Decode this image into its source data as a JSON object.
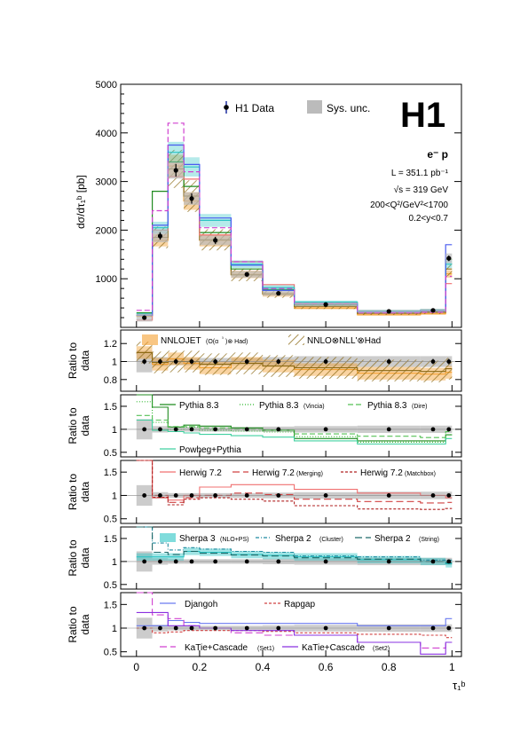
{
  "chart_data": {
    "type": "step-histogram",
    "experiment_logo": "H1",
    "xlabel": "τ₁ᵇ",
    "main_panel": {
      "ylabel": "dσ/dτ₁ᵇ [pb]",
      "ylim": [
        0,
        5000
      ],
      "yticks": [
        "1000",
        "2000",
        "3000",
        "4000",
        "5000"
      ],
      "legend": {
        "data": "H1 Data",
        "sys": "Sys. unc."
      },
      "annotations": [
        "e⁻ p",
        "L = 351.1 pb⁻¹",
        "√s = 319 GeV",
        "200<Q²/GeV²<1700",
        "0.2<y<0.7"
      ],
      "bin_edges": [
        0,
        0.05,
        0.1,
        0.15,
        0.2,
        0.3,
        0.4,
        0.5,
        0.7,
        0.9,
        0.98,
        1.0
      ],
      "data": [
        200,
        1880,
        3230,
        2650,
        1790,
        1090,
        700,
        470,
        330,
        350,
        1420
      ],
      "sys_unc": [
        80,
        130,
        170,
        130,
        100,
        70,
        50,
        40,
        30,
        30,
        100
      ],
      "models": [
        {
          "name": "NNLOJET",
          "color": "#f5a030",
          "values": [
            230,
            1790,
            3320,
            2600,
            1790,
            1090,
            680,
            400,
            260,
            280,
            1100
          ]
        },
        {
          "name": "NNLO⊗NLL'⊗Had",
          "color": "#8b6914",
          "values": [
            250,
            1850,
            3260,
            2700,
            1800,
            1080,
            690,
            430,
            290,
            310,
            1200
          ]
        },
        {
          "name": "Pythia 8.3",
          "color": "#1f8a1f",
          "values": [
            300,
            2800,
            3400,
            2900,
            1950,
            1200,
            780,
            460,
            320,
            330,
            1400
          ]
        },
        {
          "name": "Herwig 7.2",
          "color": "#f07070",
          "values": [
            150,
            2000,
            3100,
            3050,
            1900,
            1350,
            880,
            510,
            330,
            340,
            900
          ]
        },
        {
          "name": "Sherpa 3",
          "color": "#2cc4c4",
          "values": [
            280,
            2050,
            3600,
            3300,
            2200,
            1300,
            820,
            520,
            340,
            360,
            1300
          ]
        },
        {
          "name": "Djangoh",
          "color": "#4a5cf0",
          "values": [
            250,
            2100,
            3750,
            3350,
            2250,
            1280,
            760,
            480,
            320,
            340,
            1700
          ]
        },
        {
          "name": "KaTie+Cascade (Set1)",
          "color": "#d040d0",
          "values": [
            350,
            2400,
            4200,
            3200,
            2050,
            1350,
            800,
            490,
            300,
            310,
            1050
          ]
        }
      ]
    },
    "ratio_panels": [
      {
        "ylabel": "Ratio to data",
        "yticks": [
          "0.8",
          "1",
          "1.2"
        ],
        "ylim": [
          0.67,
          1.35
        ],
        "legend": [
          "NNLOJET",
          "(O(α",
          "³",
          ")⊗ Had)",
          "NNLO⊗NLL'⊗Had"
        ],
        "data_ratio_sys": [
          0.12,
          0.05,
          0.04,
          0.04,
          0.04,
          0.04,
          0.05,
          0.06,
          0.06,
          0.06,
          0.06
        ],
        "lines": [
          {
            "color": "#f5a030",
            "band": 0.07,
            "values": [
              1.1,
              0.97,
              1.03,
              0.98,
              0.93,
              0.98,
              0.95,
              0.91,
              0.87,
              0.86,
              0.88
            ]
          },
          {
            "color": "#8b6914",
            "band": 0.12,
            "values": [
              1.1,
              0.99,
              1.0,
              1.0,
              0.97,
              0.98,
              0.95,
              0.93,
              0.9,
              0.89,
              0.92
            ]
          }
        ]
      },
      {
        "ylabel": "Ratio to data",
        "yticks": [
          "0.5",
          "1",
          "1.5"
        ],
        "ylim": [
          0.4,
          1.75
        ],
        "legend": [
          "Pythia 8.3",
          "Pythia 8.3",
          "(Vincia)",
          "Pythia 8.3",
          "(Dire)",
          "Powheg+Pythia"
        ],
        "data_ratio_sys": [
          0.22,
          0.07,
          0.05,
          0.05,
          0.05,
          0.05,
          0.06,
          0.07,
          0.08,
          0.08,
          0.08
        ],
        "lines": [
          {
            "color": "#1f8a1f",
            "dash": "",
            "values": [
              1.75,
              1.48,
              1.05,
              1.09,
              1.07,
              1.03,
              0.98,
              0.8,
              0.75,
              0.75,
              0.88
            ]
          },
          {
            "color": "#2db82d",
            "dash": "1,2",
            "values": [
              1.6,
              1.15,
              1.0,
              1.05,
              0.98,
              0.96,
              0.94,
              0.84,
              0.72,
              0.72,
              0.88
            ]
          },
          {
            "color": "#55c055",
            "dash": "6,3",
            "values": [
              1.3,
              1.2,
              1.06,
              1.06,
              1.03,
              1.0,
              0.98,
              0.9,
              0.85,
              0.82,
              0.95
            ]
          },
          {
            "color": "#40d0a0",
            "dash": "",
            "values": [
              1.2,
              0.98,
              0.95,
              0.92,
              0.89,
              0.86,
              0.83,
              0.75,
              0.68,
              0.68,
              0.8
            ]
          }
        ]
      },
      {
        "ylabel": "Ratio to data",
        "yticks": [
          "0.5",
          "1",
          "1.5"
        ],
        "ylim": [
          0.4,
          1.75
        ],
        "legend": [
          "Herwig 7.2",
          "Herwig 7.2",
          "(Merging)",
          "Herwig 7.2",
          "(Matchbox)"
        ],
        "data_ratio_sys": [
          0.22,
          0.07,
          0.05,
          0.05,
          0.05,
          0.05,
          0.06,
          0.07,
          0.08,
          0.08,
          0.08
        ],
        "lines": [
          {
            "color": "#f07070",
            "dash": "",
            "values": [
              1.75,
              0.95,
              0.9,
              1.0,
              1.18,
              1.23,
              1.23,
              1.13,
              1.05,
              1.0,
              0.95
            ]
          },
          {
            "color": "#d04040",
            "dash": "8,4",
            "values": [
              1.75,
              1.0,
              0.85,
              0.95,
              1.0,
              1.05,
              1.02,
              0.92,
              0.87,
              0.84,
              0.85
            ]
          },
          {
            "color": "#b02020",
            "dash": "3,2",
            "values": [
              1.75,
              0.96,
              0.8,
              0.92,
              0.95,
              0.92,
              0.88,
              0.78,
              0.71,
              0.7,
              0.72
            ]
          }
        ]
      },
      {
        "ylabel": "Ratio to data",
        "yticks": [
          "0.5",
          "1",
          "1.5"
        ],
        "ylim": [
          0.4,
          1.75
        ],
        "legend": [
          "Sherpa 3",
          "(NLO+PS)",
          "Sherpa 2",
          "(Cluster)",
          "Sherpa 2",
          "(String)"
        ],
        "data_ratio_sys": [
          0.22,
          0.07,
          0.05,
          0.05,
          0.05,
          0.05,
          0.06,
          0.07,
          0.08,
          0.08,
          0.08
        ],
        "lines": [
          {
            "color": "#2cc4c4",
            "band": 0.08,
            "dash": "",
            "values": [
              1.1,
              1.1,
              1.1,
              1.22,
              1.2,
              1.15,
              1.13,
              1.1,
              1.04,
              1.0,
              0.95
            ]
          },
          {
            "color": "#1f8aa0",
            "dash": "4,2,1,2",
            "values": [
              1.75,
              1.4,
              1.25,
              1.3,
              1.27,
              1.22,
              1.2,
              1.12,
              1.1,
              1.03,
              1.03
            ]
          },
          {
            "color": "#1f6a6a",
            "dash": "8,4",
            "values": [
              1.75,
              1.2,
              1.15,
              1.22,
              1.18,
              1.14,
              1.12,
              1.08,
              1.05,
              1.0,
              0.97
            ]
          }
        ]
      },
      {
        "ylabel": "Ratio to data",
        "yticks": [
          "0.5",
          "1",
          "1.5"
        ],
        "ylim": [
          0.4,
          1.75
        ],
        "legend": [
          "Djangoh",
          "Rapgap",
          "KaTie+Cascade",
          "(Set1)",
          "KaTie+Cascade",
          "(Set2)"
        ],
        "data_ratio_sys": [
          0.22,
          0.07,
          0.05,
          0.05,
          0.05,
          0.05,
          0.06,
          0.07,
          0.08,
          0.08,
          0.08
        ],
        "lines": [
          {
            "color": "#6a7af0",
            "dash": "",
            "values": [
              1.05,
              1.05,
              1.16,
              1.12,
              1.1,
              1.1,
              1.1,
              1.1,
              1.05,
              1.05,
              1.2
            ]
          },
          {
            "color": "#d04040",
            "dash": "3,2",
            "values": [
              1.0,
              0.9,
              0.92,
              0.95,
              0.95,
              0.95,
              0.93,
              0.9,
              0.87,
              0.85,
              0.8
            ]
          },
          {
            "color": "#d040d0",
            "dash": "8,4",
            "values": [
              1.75,
              1.28,
              1.2,
              1.05,
              1.0,
              0.9,
              0.85,
              0.85,
              0.7,
              0.58,
              0.7
            ]
          },
          {
            "color": "#8a30e0",
            "dash": "",
            "values": [
              1.33,
              1.33,
              1.05,
              1.05,
              1.0,
              0.95,
              0.95,
              0.85,
              0.7,
              0.45,
              0.7
            ]
          }
        ]
      }
    ],
    "xticks": [
      "0",
      "0.2",
      "0.4",
      "0.6",
      "0.8",
      "1"
    ],
    "xlim": [
      -0.05,
      1.03
    ]
  }
}
